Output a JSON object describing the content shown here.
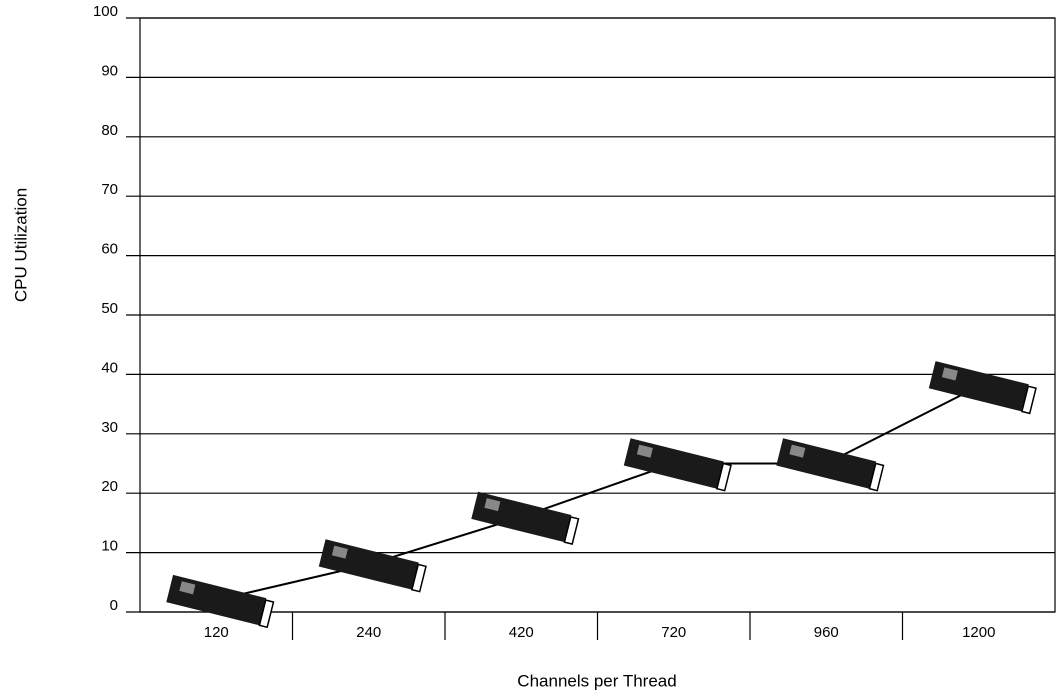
{
  "chart_data": {
    "type": "line",
    "x_label": "Channels per Thread",
    "y_label": "CPU Utilization",
    "categories": [
      "120",
      "240",
      "420",
      "720",
      "960",
      "1200"
    ],
    "values": [
      2,
      8,
      16,
      25,
      25,
      38
    ],
    "color": "#000000",
    "ylim": [
      0,
      100
    ],
    "yticks": [
      0,
      10,
      20,
      30,
      40,
      50,
      60,
      70,
      80,
      90,
      100
    ],
    "grid": true
  }
}
